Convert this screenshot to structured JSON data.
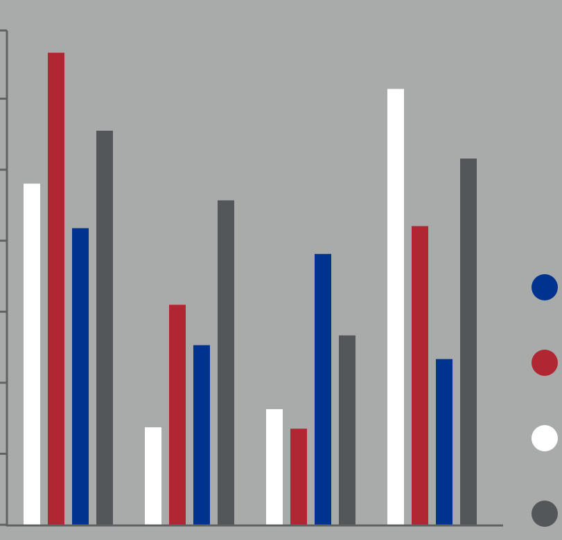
{
  "chart_data": {
    "type": "bar",
    "categories": [
      "",
      "",
      "",
      ""
    ],
    "series": [
      {
        "color": "#ffffff",
        "values": [
          49,
          14,
          16.6,
          62.6
        ]
      },
      {
        "color": "#b02733",
        "values": [
          67.8,
          31.6,
          13.8,
          42.9
        ]
      },
      {
        "color": "#003290",
        "values": [
          42.6,
          25.8,
          38.9,
          23.8
        ]
      },
      {
        "color": "#53575a",
        "values": [
          56.6,
          46.6,
          27.2,
          52.6
        ]
      }
    ],
    "ylim": [
      0,
      71
    ],
    "y_ticks": [
      0,
      10.2,
      20.4,
      30.6,
      40.8,
      51,
      61.2,
      71
    ],
    "grid": false,
    "legend_position": "right",
    "legend": [
      {
        "color": "#003290"
      },
      {
        "color": "#b02733"
      },
      {
        "color": "#ffffff"
      },
      {
        "color": "#53575a"
      }
    ]
  }
}
